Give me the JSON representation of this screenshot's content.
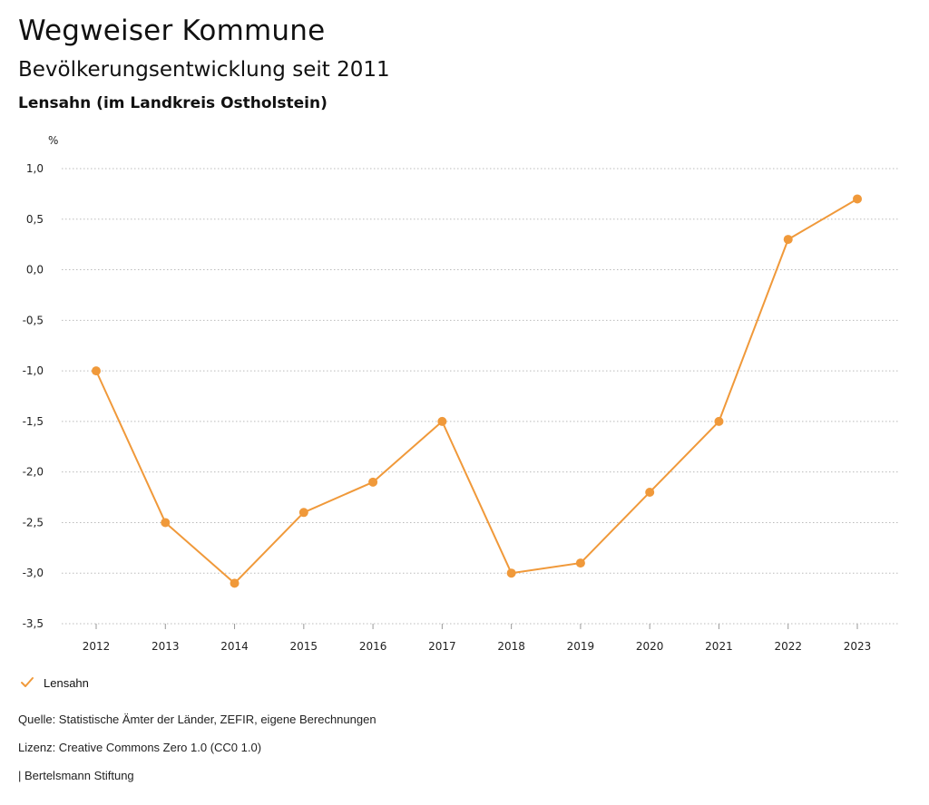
{
  "header": {
    "title": "Wegweiser Kommune",
    "subtitle": "Bevölkerungsentwicklung seit 2011",
    "region": "Lensahn (im Landkreis Ostholstein)"
  },
  "chart_data": {
    "type": "line",
    "ylabel": "%",
    "xlabel": "",
    "x": [
      "2012",
      "2013",
      "2014",
      "2015",
      "2016",
      "2017",
      "2018",
      "2019",
      "2020",
      "2021",
      "2022",
      "2023"
    ],
    "ylim": [
      -3.5,
      1.0
    ],
    "yticks": [
      "1,0",
      "0,5",
      "0,0",
      "-0,5",
      "-1,0",
      "-1,5",
      "-2,0",
      "-2,5",
      "-3,0",
      "-3,5"
    ],
    "grid": true,
    "series": [
      {
        "name": "Lensahn",
        "color": "#F0993A",
        "values": [
          -1.0,
          -2.5,
          -3.1,
          -2.4,
          -2.1,
          -1.5,
          -3.0,
          -2.9,
          -2.2,
          -1.5,
          0.3,
          0.7
        ]
      }
    ],
    "legend": "bottom-left"
  },
  "footer": {
    "source": "Quelle: Statistische Ämter der Länder, ZEFIR, eigene Berechnungen",
    "license": "Lizenz: Creative Commons Zero 1.0 (CC0 1.0)",
    "org": "| Bertelsmann Stiftung"
  }
}
